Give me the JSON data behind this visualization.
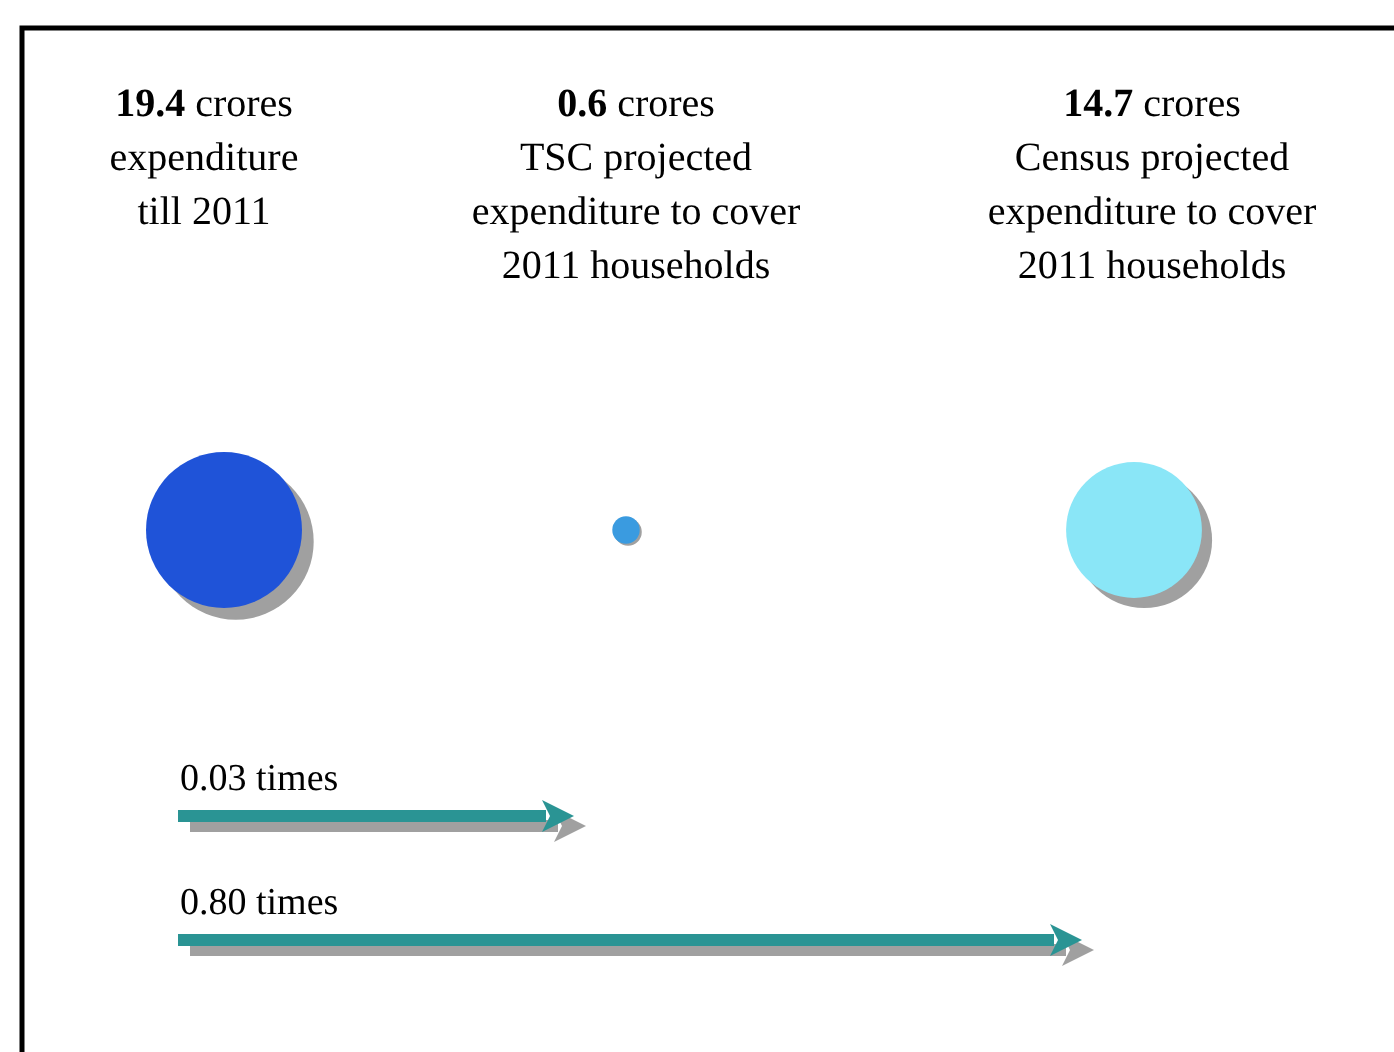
{
  "chart_data": {
    "type": "other",
    "categories": [
      "crores\nexpenditure\ntill 2011",
      "crores\nTSC projected\nexpenditure to cover\n2011 households",
      "crores\nCensus projected\nexpenditure to cover\n2011 households"
    ],
    "values": [
      19.4,
      0.6,
      14.7
    ],
    "colors": [
      "#1f53d8",
      "#3a9be0",
      "#8ae6f7"
    ],
    "data_labels": true,
    "annotations": [
      "0.03 times",
      "0.80 times"
    ]
  }
}
